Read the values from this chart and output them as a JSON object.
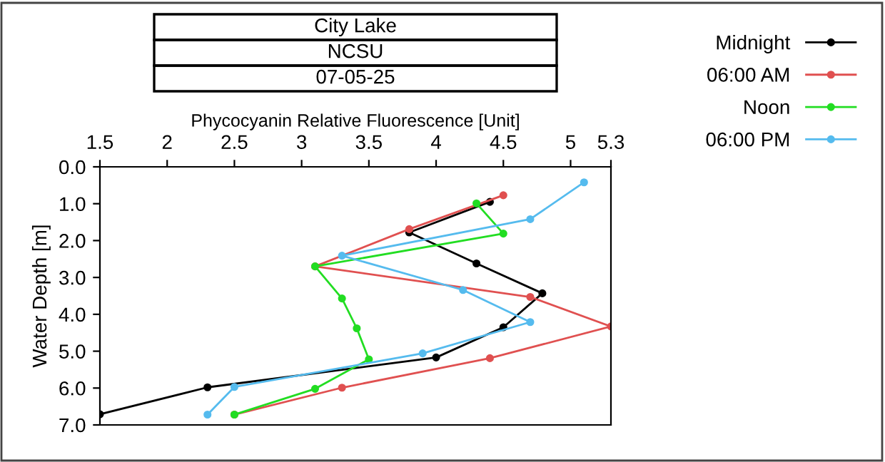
{
  "chart_data": {
    "type": "line",
    "title": "City Lake",
    "subtitle": "NCSU",
    "annotations": [
      "07-05-25"
    ],
    "xlabel": "Phycocyanin Relative Fluorescence [Unit]",
    "ylabel": "Water Depth [m]",
    "xlim": [
      1.5,
      5.3
    ],
    "xticks": [
      1.5,
      2,
      2.5,
      3,
      3.5,
      4,
      4.5,
      5,
      5.3
    ],
    "ylim": [
      7.0,
      0.0
    ],
    "yticks": [
      {
        "value": 0,
        "label": "0.0"
      },
      {
        "value": 1,
        "label": "1.0"
      },
      {
        "value": 2,
        "label": "2.0"
      },
      {
        "value": 3,
        "label": "3.0"
      },
      {
        "value": 4,
        "label": "4.0"
      },
      {
        "value": 5,
        "label": "5.0"
      },
      {
        "value": 6,
        "label": "6.0"
      },
      {
        "value": 7,
        "label": "7.0"
      }
    ],
    "marker": "circle",
    "line_style": "solid",
    "grid": false,
    "legend": "top right",
    "series": [
      {
        "name": "Midnight",
        "color": "#000000",
        "x": [
          4.4,
          3.8,
          4.3,
          4.79,
          4.5,
          4.0,
          2.3,
          1.5
        ],
        "values": [
          0.95,
          1.78,
          2.62,
          3.43,
          4.35,
          5.17,
          5.98,
          6.71
        ]
      },
      {
        "name": "06:00 AM",
        "color": "#e05050",
        "x": [
          4.5,
          3.8,
          3.1,
          4.7,
          5.3,
          4.4,
          3.3,
          2.5
        ],
        "values": [
          0.77,
          1.69,
          2.7,
          3.53,
          4.33,
          5.19,
          5.99,
          6.72
        ]
      },
      {
        "name": "Noon",
        "color": "#22dd22",
        "x": [
          4.3,
          4.5,
          3.1,
          3.3,
          3.41,
          3.5,
          3.1,
          2.5
        ],
        "values": [
          0.99,
          1.81,
          2.7,
          3.57,
          4.38,
          5.22,
          6.02,
          6.72
        ]
      },
      {
        "name": "06:00 PM",
        "color": "#55bbee",
        "x": [
          5.1,
          4.7,
          3.3,
          4.2,
          4.7,
          3.9,
          2.5,
          2.3
        ],
        "values": [
          0.42,
          1.42,
          2.41,
          3.34,
          4.21,
          5.06,
          5.97,
          6.72
        ]
      }
    ]
  }
}
